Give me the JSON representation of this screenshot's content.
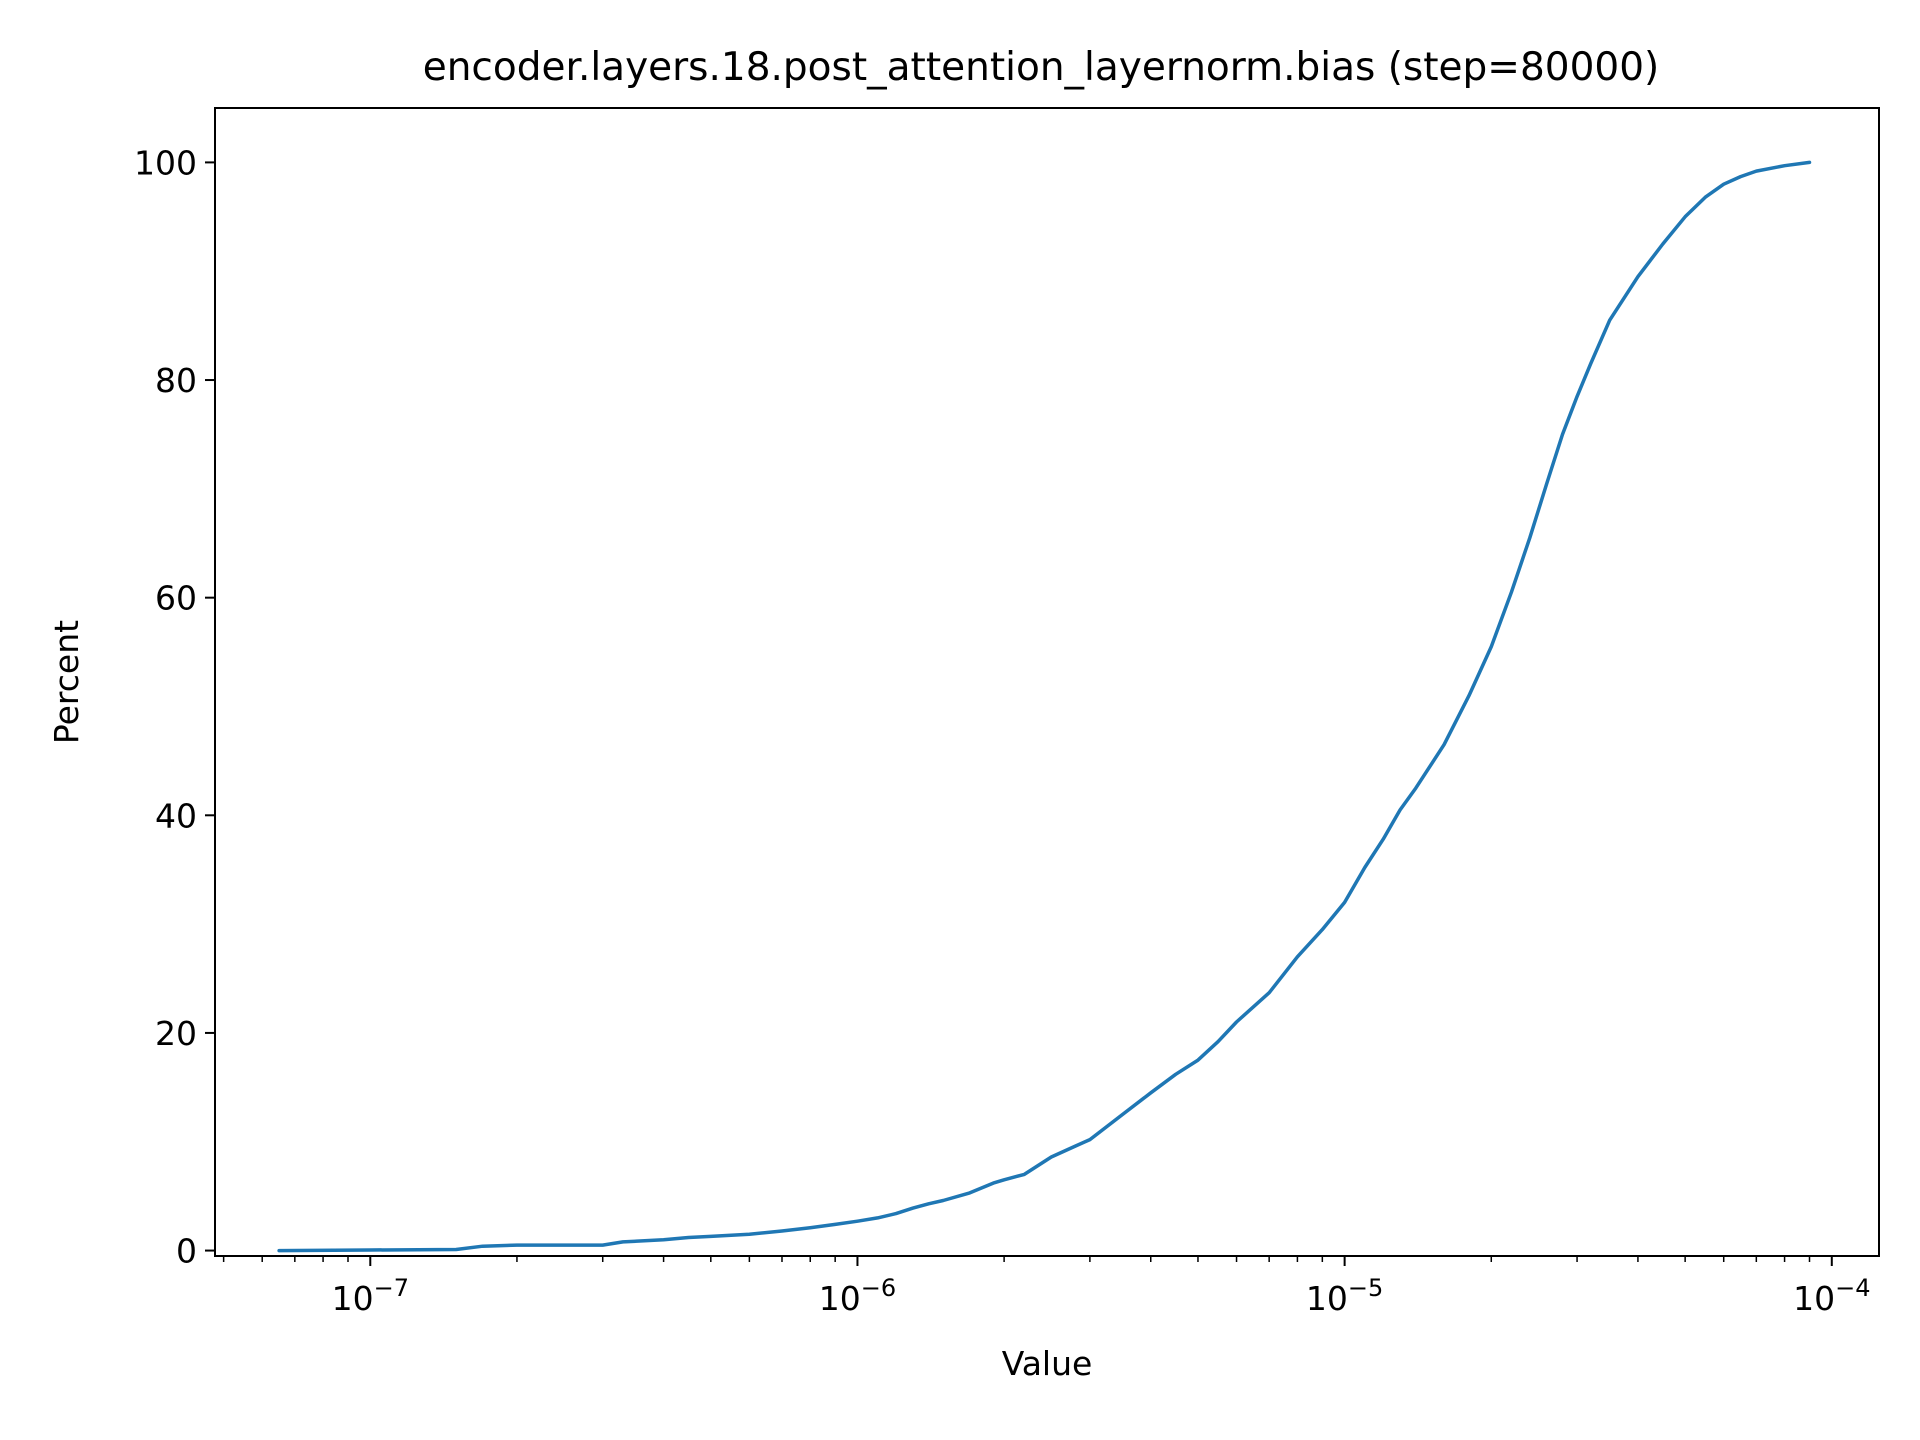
{
  "chart_data": {
    "type": "line",
    "title": "encoder.layers.18.post_attention_layernorm.bias (step=80000)",
    "xlabel": "Value",
    "ylabel": "Percent",
    "x_scale": "log",
    "xlim": [
      4.8e-08,
      0.000125
    ],
    "ylim": [
      -0.5,
      105
    ],
    "grid": false,
    "line_color": "#1f77b4",
    "x_major_ticks": [
      {
        "value": 1e-07,
        "mantissa": "10",
        "exp": "−7"
      },
      {
        "value": 1e-06,
        "mantissa": "10",
        "exp": "−6"
      },
      {
        "value": 1e-05,
        "mantissa": "10",
        "exp": "−5"
      },
      {
        "value": 0.0001,
        "mantissa": "10",
        "exp": "−4"
      }
    ],
    "y_ticks": [
      {
        "value": 0,
        "label": "0"
      },
      {
        "value": 20,
        "label": "20"
      },
      {
        "value": 40,
        "label": "40"
      },
      {
        "value": 60,
        "label": "60"
      },
      {
        "value": 80,
        "label": "80"
      },
      {
        "value": 100,
        "label": "100"
      }
    ],
    "series": [
      {
        "x": [
          6.5e-08,
          1e-07,
          1.5e-07,
          1.7e-07,
          2e-07,
          2.5e-07,
          3e-07,
          3.3e-07,
          4e-07,
          4.5e-07,
          5e-07,
          6e-07,
          7e-07,
          8e-07,
          9e-07,
          1e-06,
          1.1e-06,
          1.2e-06,
          1.3e-06,
          1.4e-06,
          1.5e-06,
          1.7e-06,
          1.9e-06,
          2e-06,
          2.2e-06,
          2.5e-06,
          2.8e-06,
          3e-06,
          3.5e-06,
          4e-06,
          4.5e-06,
          5e-06,
          5.5e-06,
          6e-06,
          7e-06,
          8e-06,
          9e-06,
          1e-05,
          1.1e-05,
          1.2e-05,
          1.3e-05,
          1.4e-05,
          1.6e-05,
          1.8e-05,
          2e-05,
          2.2e-05,
          2.4e-05,
          2.6e-05,
          2.8e-05,
          3e-05,
          3.2e-05,
          3.5e-05,
          4e-05,
          4.5e-05,
          5e-05,
          5.5e-05,
          6e-05,
          6.5e-05,
          7e-05,
          8e-05,
          9e-05
        ],
        "y": [
          0,
          0.05,
          0.1,
          0.4,
          0.5,
          0.5,
          0.5,
          0.8,
          1.0,
          1.2,
          1.3,
          1.5,
          1.8,
          2.1,
          2.4,
          2.7,
          3.0,
          3.4,
          3.9,
          4.3,
          4.6,
          5.3,
          6.2,
          6.5,
          7.0,
          8.6,
          9.6,
          10.2,
          12.5,
          14.5,
          16.2,
          17.5,
          19.2,
          21.0,
          23.7,
          27.0,
          29.5,
          32.0,
          35.2,
          37.8,
          40.5,
          42.5,
          46.5,
          51.0,
          55.5,
          60.5,
          65.5,
          70.5,
          75.0,
          78.5,
          81.5,
          85.5,
          89.5,
          92.5,
          95.0,
          96.8,
          98.0,
          98.7,
          99.2,
          99.7,
          100.0
        ]
      }
    ]
  }
}
